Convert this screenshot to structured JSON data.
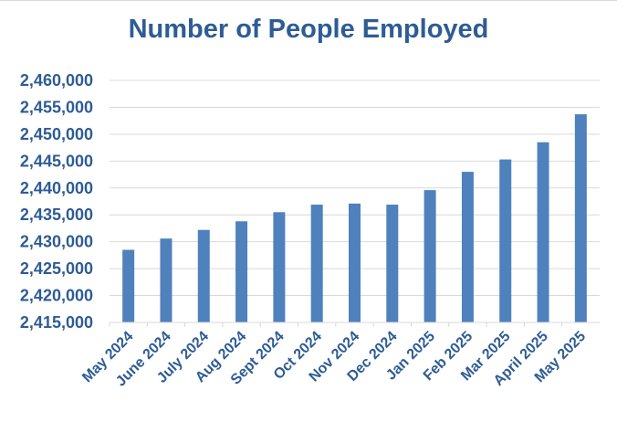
{
  "chart_data": {
    "type": "bar",
    "title": "Number of People Employed",
    "xlabel": "",
    "ylabel": "",
    "ylim": [
      2415000,
      2460000
    ],
    "yticks": [
      2415000,
      2420000,
      2425000,
      2430000,
      2435000,
      2440000,
      2445000,
      2450000,
      2455000,
      2460000
    ],
    "ytick_labels": [
      "2,415,000",
      "2,420,000",
      "2,425,000",
      "2,430,000",
      "2,435,000",
      "2,440,000",
      "2,445,000",
      "2,450,000",
      "2,455,000",
      "2,460,000"
    ],
    "categories": [
      "May 2024",
      "June 2024",
      "July 2024",
      "Aug 2024",
      "Sept 2024",
      "Oct 2024",
      "Nov 2024",
      "Dec 2024",
      "Jan 2025",
      "Feb 2025",
      "Mar 2025",
      "April 2025",
      "May 2025"
    ],
    "values": [
      2428500,
      2430600,
      2432200,
      2433800,
      2435500,
      2436900,
      2437100,
      2436900,
      2439600,
      2443000,
      2445300,
      2448500,
      2453700
    ],
    "grid": true,
    "legend": "none",
    "colors": {
      "bar": "#4f81bd",
      "text": "#2e5c94",
      "grid": "#d9d9d9",
      "axis": "#d9d9d9"
    }
  }
}
